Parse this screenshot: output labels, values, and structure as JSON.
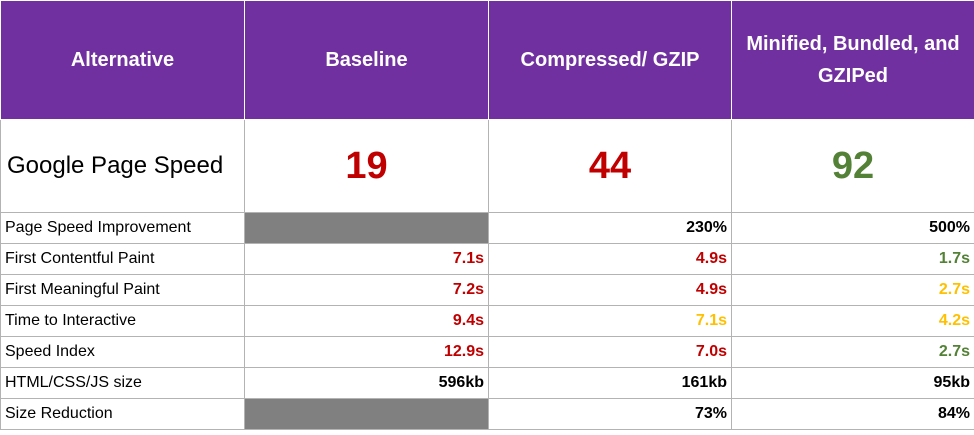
{
  "headers": [
    "Alternative",
    "Baseline",
    "Compressed/ GZIP",
    "Minified, Bundled, and GZIPed"
  ],
  "score_row": {
    "label": "Google Page Speed",
    "cells": [
      {
        "value": "19",
        "color": "#c00000"
      },
      {
        "value": "44",
        "color": "#c00000"
      },
      {
        "value": "92",
        "color": "#538135"
      }
    ]
  },
  "rows": [
    {
      "label": "Page Speed Improvement",
      "cells": [
        {
          "value": null,
          "color": "#808080"
        },
        {
          "value": "230%",
          "color": "#000000"
        },
        {
          "value": "500%",
          "color": "#000000"
        }
      ]
    },
    {
      "label": "First Contentful Paint",
      "cells": [
        {
          "value": "7.1s",
          "color": "#c00000"
        },
        {
          "value": "4.9s",
          "color": "#c00000"
        },
        {
          "value": "1.7s",
          "color": "#538135"
        }
      ]
    },
    {
      "label": "First Meaningful Paint",
      "cells": [
        {
          "value": "7.2s",
          "color": "#c00000"
        },
        {
          "value": "4.9s",
          "color": "#c00000"
        },
        {
          "value": "2.7s",
          "color": "#ffc000"
        }
      ]
    },
    {
      "label": "Time to Interactive",
      "cells": [
        {
          "value": "9.4s",
          "color": "#c00000"
        },
        {
          "value": "7.1s",
          "color": "#ffc000"
        },
        {
          "value": "4.2s",
          "color": "#ffc000"
        }
      ]
    },
    {
      "label": "Speed Index",
      "cells": [
        {
          "value": "12.9s",
          "color": "#c00000"
        },
        {
          "value": "7.0s",
          "color": "#c00000"
        },
        {
          "value": "2.7s",
          "color": "#538135"
        }
      ]
    },
    {
      "label": "HTML/CSS/JS size",
      "cells": [
        {
          "value": "596kb",
          "color": "#000000"
        },
        {
          "value": "161kb",
          "color": "#000000"
        },
        {
          "value": "95kb",
          "color": "#000000"
        }
      ]
    },
    {
      "label": "Size Reduction",
      "cells": [
        {
          "value": null,
          "color": "#808080"
        },
        {
          "value": "73%",
          "color": "#000000"
        },
        {
          "value": "84%",
          "color": "#000000"
        }
      ]
    }
  ]
}
